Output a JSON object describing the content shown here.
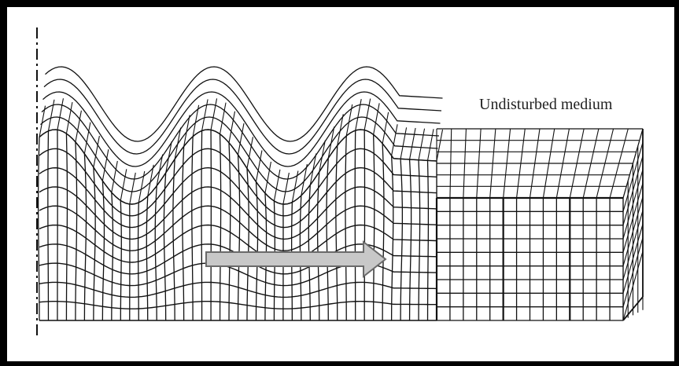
{
  "diagram": {
    "label": "Undisturbed medium",
    "colors": {
      "frame": "#000000",
      "mesh": "#111111",
      "arrow_fill": "#c8c8c8",
      "arrow_outline": "#6a6a6a",
      "background": "#ffffff"
    }
  }
}
